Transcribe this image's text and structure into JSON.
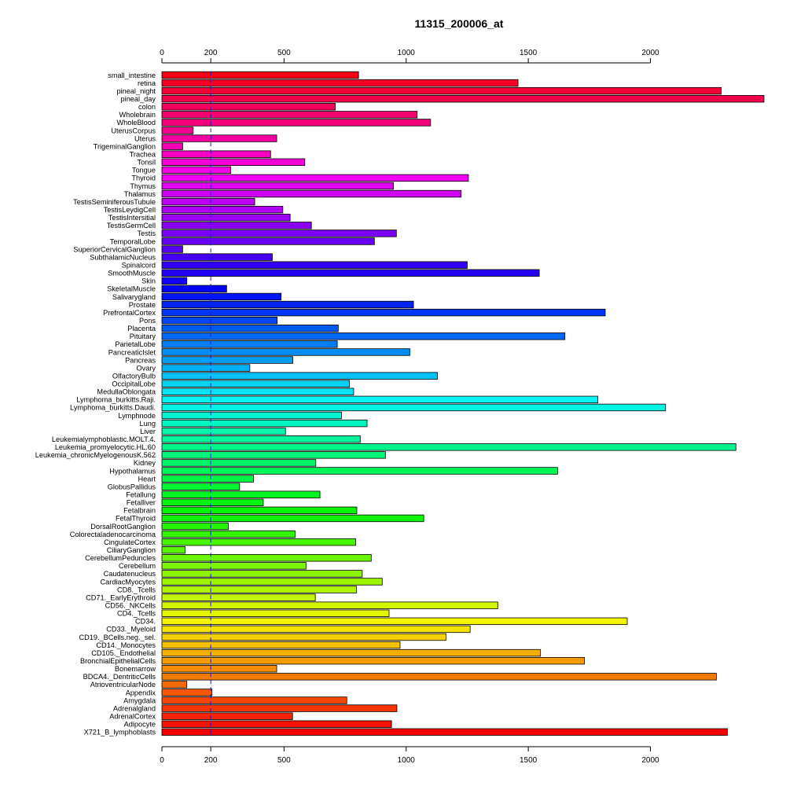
{
  "chart_data": {
    "type": "bar",
    "orientation": "horizontal",
    "title": "11315_200006_at",
    "xlabel": "",
    "ylabel": "",
    "xlim": [
      0,
      2465
    ],
    "xticks": [
      0,
      200,
      500,
      1000,
      1500,
      2000
    ],
    "reference_line": {
      "value": 200,
      "color": "#1515d0",
      "style": "dashed"
    },
    "grid": false,
    "legend": "none",
    "colormap": "rainbow",
    "categories": [
      "small_intestine",
      "retina",
      "pineal_night",
      "pineal_day",
      "colon",
      "Wholebrain",
      "WholeBlood",
      "UterusCorpus",
      "Uterus",
      "TrigeminalGanglion",
      "Trachea",
      "Tonsil",
      "Tongue",
      "Thyroid",
      "Thymus",
      "Thalamus",
      "TestisSeminiferousTubule",
      "TestisLeydigCell",
      "TestisIntersitial",
      "TestisGermCell",
      "Testis",
      "TemporalLobe",
      "SuperiorCervicalGanglion",
      "SubthalamicNucleus",
      "Spinalcord",
      "SmoothMuscle",
      "Skin",
      "SkeletalMuscle",
      "Salivarygland",
      "Prostate",
      "PrefrontalCortex",
      "Pons",
      "Placenta",
      "Pituitary",
      "ParietalLobe",
      "PancreaticIslet",
      "Pancreas",
      "Ovary",
      "OlfactoryBulb",
      "OccipitalLobe",
      "MedullaOblongata",
      "Lymphoma_burkitts.Raji.",
      "Lymphoma_burkitts.Daudi.",
      "Lymphnode",
      "Lung",
      "Liver",
      "Leukemialymphoblastic.MOLT.4.",
      "Leukemia_promyelocytic.HL.60",
      "Leukemia_chronicMyelogenousK.562",
      "Kidney",
      "Hypothalamus",
      "Heart",
      "GlobusPallidus",
      "Fetallung",
      "Fetalliver",
      "Fetalbrain",
      "FetalThyroid",
      "DorsalRootGanglion",
      "Colorectaladenocarcinoma",
      "CingulateCortex",
      "CiliaryGanglion",
      "CerebellumPeduncles",
      "Cerebellum",
      "Caudatenucleus",
      "CardiacMyocytes",
      "CD8._Tcells",
      "CD71._EarlyErythroid",
      "CD56._NKCells",
      "CD4._Tcells",
      "CD34.",
      "CD33._Myeloid",
      "CD19._BCells.neg._sel.",
      "CD14._Monocytes",
      "CD105._Endothelial",
      "BronchialEpithelialCells",
      "Bonemarrow",
      "BDCA4._DentriticCells",
      "AtrioventricularNode",
      "Appendix",
      "Amygdala",
      "Adrenalgland",
      "AdrenalCortex",
      "Adipocyte",
      "X721_B_lymphoblasts"
    ],
    "values": [
      805,
      1458,
      2290,
      2465,
      710,
      1045,
      1100,
      128,
      470,
      85,
      445,
      585,
      282,
      1255,
      948,
      1225,
      380,
      495,
      525,
      612,
      960,
      870,
      85,
      452,
      1250,
      1545,
      102,
      265,
      488,
      1030,
      1815,
      472,
      722,
      1650,
      718,
      1015,
      536,
      360,
      1128,
      768,
      785,
      1785,
      2062,
      735,
      840,
      506,
      812,
      2350,
      915,
      630,
      1620,
      375,
      318,
      647,
      415,
      798,
      1072,
      272,
      545,
      793,
      95,
      857,
      590,
      820,
      902,
      797,
      628,
      1375,
      930,
      1905,
      1262,
      1163,
      975,
      1550,
      1730,
      470,
      2270,
      102,
      205,
      757,
      962,
      535,
      940,
      2315
    ]
  }
}
